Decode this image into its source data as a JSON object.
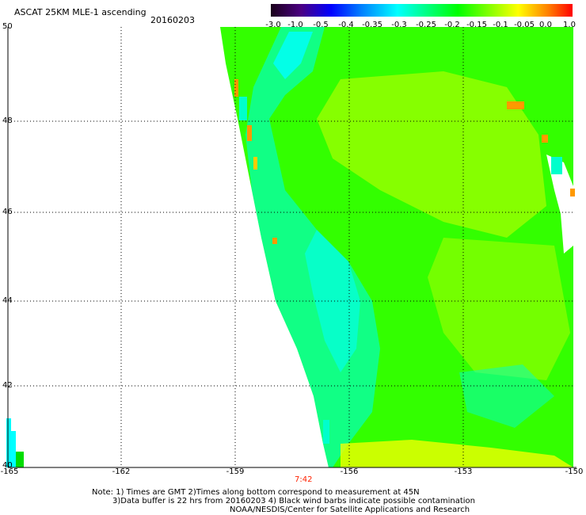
{
  "header": {
    "title": "ASCAT 25KM MLE-1 ascending",
    "date": "20160203"
  },
  "colorbar": {
    "ticks": [
      "-3.0",
      "-1.0",
      "-0.5",
      "-0.4",
      "-0.35",
      "-0.3",
      "-0.25",
      "-0.2",
      "-0.15",
      "-0.1",
      "-0.05",
      "0.0",
      "1.0"
    ],
    "colors": [
      "#1a001a",
      "#4b0082",
      "#0000ff",
      "#007fff",
      "#00ffff",
      "#00ff7f",
      "#00ff00",
      "#7fff00",
      "#ffff00",
      "#ff7f00",
      "#ff0000"
    ]
  },
  "map": {
    "lat_labels": [
      "50",
      "48",
      "46",
      "44",
      "42",
      "40"
    ],
    "lon_labels": [
      "-165",
      "-162",
      "-159",
      "-156",
      "-153",
      "-150"
    ],
    "time_label": "7:42",
    "swath_colors": {
      "green": "#33ff00",
      "lime": "#aaff00",
      "yellow_green": "#ccff00",
      "cyan": "#00ffcc",
      "aqua": "#00ffff",
      "orange": "#ff9900",
      "yellow": "#ffff00"
    }
  },
  "footer": {
    "line1": "Note: 1) Times are GMT 2)Times along bottom correspond to measurement at 45N",
    "line2": "3)Data buffer is 22 hrs from 20160203 4) Black wind barbs indicate possible contamination",
    "line3": "NOAA/NESDIS/Center for Satellite Applications and Research"
  }
}
